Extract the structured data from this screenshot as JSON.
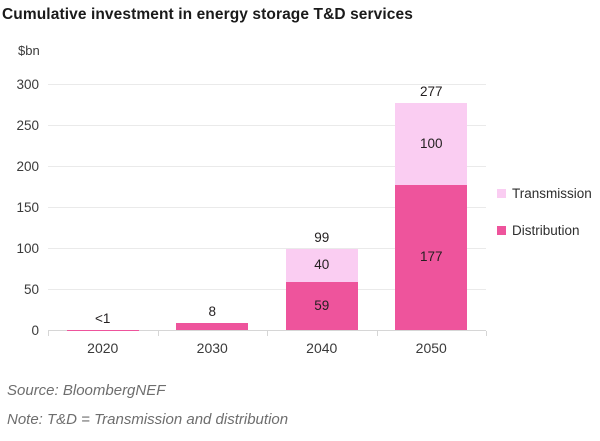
{
  "chart_data": {
    "type": "bar",
    "stacked": true,
    "title": "Cumulative investment in energy storage T&D services",
    "unit_label": "$bn",
    "categories": [
      "2020",
      "2030",
      "2040",
      "2050"
    ],
    "series": [
      {
        "name": "Distribution",
        "color": "#EE549C",
        "values": [
          0.5,
          8,
          59,
          177
        ],
        "segment_labels": [
          "",
          "",
          "59",
          "177"
        ]
      },
      {
        "name": "Transmission",
        "color": "#FACDF2",
        "values": [
          0,
          0,
          40,
          100
        ],
        "segment_labels": [
          "",
          "",
          "40",
          "100"
        ]
      }
    ],
    "total_labels": [
      "<1",
      "8",
      "99",
      "277"
    ],
    "ylim": [
      0,
      300
    ],
    "yticks": [
      0,
      50,
      100,
      150,
      200,
      250,
      300
    ],
    "grid": true,
    "legend": [
      {
        "label": "Transmission",
        "color": "#FACDF2"
      },
      {
        "label": "Distribution",
        "color": "#EE549C"
      }
    ],
    "legend_position": "right",
    "source": "Source: BloombergNEF",
    "note": "Note: T&D = Transmission and distribution",
    "colors": {
      "gridline": "#eaeaea",
      "axis": "#d6d6d6",
      "text": "#3a3a3a",
      "value_text": "#231f20"
    }
  }
}
